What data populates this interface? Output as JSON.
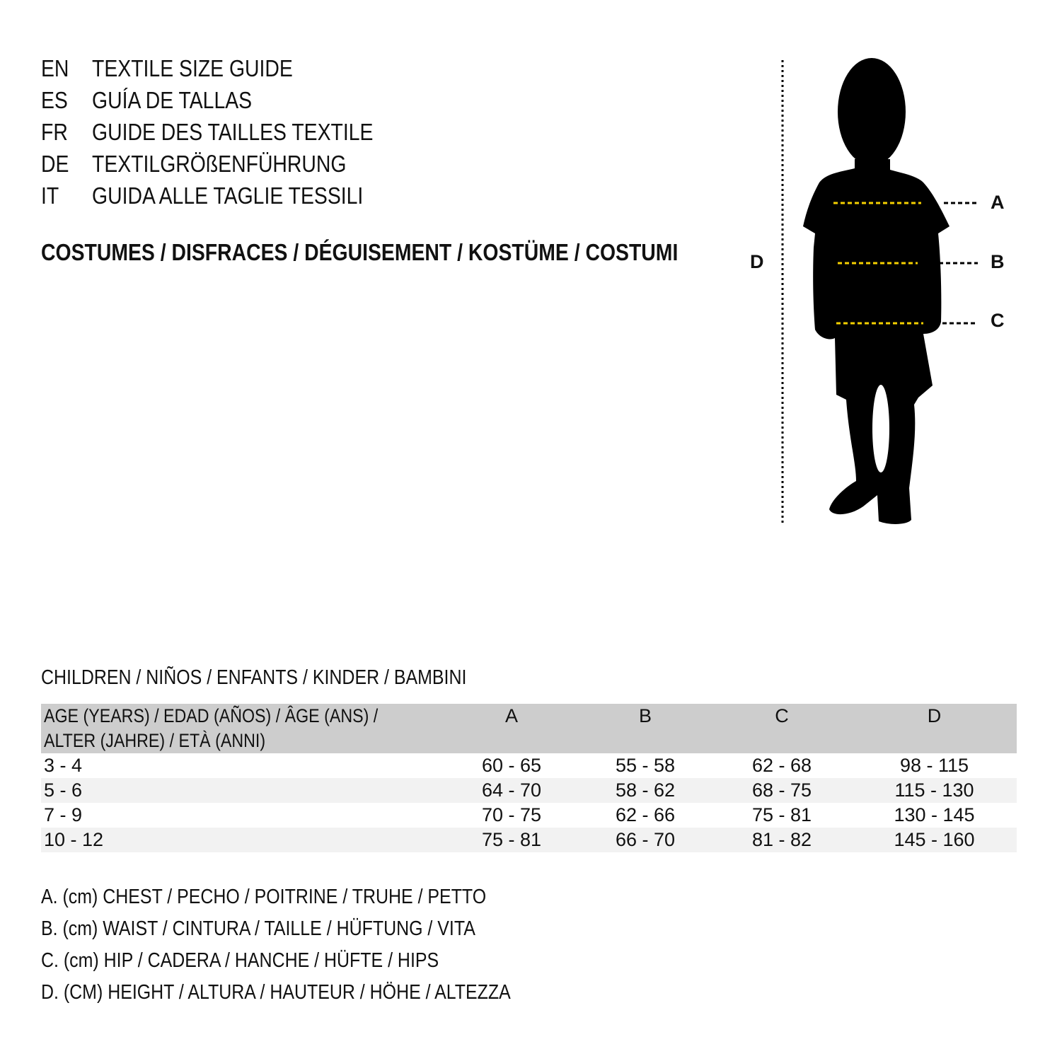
{
  "titles": [
    {
      "code": "EN",
      "text": "TEXTILE SIZE GUIDE"
    },
    {
      "code": "ES",
      "text": "GUÍA DE TALLAS"
    },
    {
      "code": "FR",
      "text": "GUIDE DES TAILLES TEXTILE"
    },
    {
      "code": "DE",
      "text": "TEXTILGRÖßENFÜHRUNG"
    },
    {
      "code": "IT",
      "text": "GUIDA ALLE TAGLIE TESSILI"
    }
  ],
  "subtitle": "COSTUMES / DISFRACES / DÉGUISEMENT / KOSTÜME / COSTUMI",
  "figure": {
    "labels": {
      "a": "A",
      "b": "B",
      "c": "C",
      "d": "D"
    },
    "measure_line_color": "#f5d000",
    "silhouette_color": "#000000"
  },
  "section": "CHILDREN / NIÑOS / ENFANTS / KINDER / BAMBINI",
  "table": {
    "header": {
      "age_line1": "AGE (YEARS) / EDAD (AÑOS) / ÂGE (ANS) /",
      "age_line2": "ALTER (JAHRE) / ETÀ (ANNI)",
      "a": "A",
      "b": "B",
      "c": "C",
      "d": "D"
    },
    "rows": [
      {
        "age": "3 - 4",
        "a": "60 - 65",
        "b": "55 - 58",
        "c": "62 - 68",
        "d": "98 - 115"
      },
      {
        "age": "5 - 6",
        "a": "64 - 70",
        "b": "58 - 62",
        "c": "68 - 75",
        "d": "115 - 130"
      },
      {
        "age": "7 - 9",
        "a": "70 - 75",
        "b": "62 - 66",
        "c": "75 - 81",
        "d": "130 - 145"
      },
      {
        "age": "10 - 12",
        "a": "75 - 81",
        "b": "66 - 70",
        "c": "81 - 82",
        "d": "145 - 160"
      }
    ],
    "header_bg": "#cdcdcd",
    "stripe_bg": "#f2f2f2"
  },
  "legend": [
    "A. (cm) CHEST / PECHO / POITRINE / TRUHE / PETTO",
    "B. (cm) WAIST / CINTURA / TAILLE / HÜFTUNG / VITA",
    "C. (cm) HIP / CADERA / HANCHE / HÜFTE / HIPS",
    "D. (CM) HEIGHT / ALTURA / HAUTEUR / HÖHE / ALTEZZA"
  ]
}
